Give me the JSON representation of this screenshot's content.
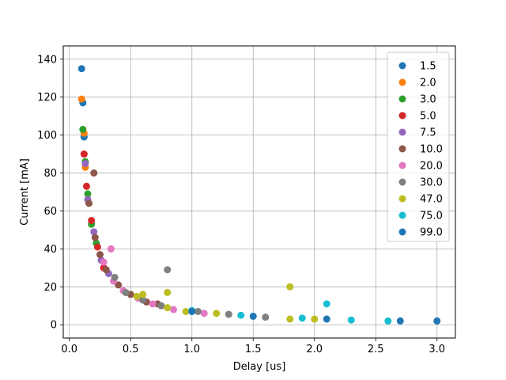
{
  "chart_data": {
    "type": "scatter",
    "title": "",
    "xlabel": "Delay [us]",
    "ylabel": "Current [mA]",
    "xlim": [
      -0.05,
      3.15
    ],
    "ylim": [
      -7,
      147
    ],
    "xticks": [
      0.0,
      0.5,
      1.0,
      1.5,
      2.0,
      2.5,
      3.0
    ],
    "xtick_labels": [
      "0.0",
      "0.5",
      "1.0",
      "1.5",
      "2.0",
      "2.5",
      "3.0"
    ],
    "yticks": [
      0,
      20,
      40,
      60,
      80,
      100,
      120,
      140
    ],
    "ytick_labels": [
      "0",
      "20",
      "40",
      "60",
      "80",
      "100",
      "120",
      "140"
    ],
    "grid": true,
    "legend_position": "top-right",
    "series": [
      {
        "name": "1.5",
        "color": "#1f77b4",
        "points": [
          [
            0.1,
            135
          ],
          [
            0.11,
            117
          ],
          [
            0.12,
            99
          ]
        ]
      },
      {
        "name": "2.0",
        "color": "#ff7f0e",
        "points": [
          [
            0.1,
            119
          ],
          [
            0.12,
            101
          ],
          [
            0.13,
            83
          ]
        ]
      },
      {
        "name": "3.0",
        "color": "#2ca02c",
        "points": [
          [
            0.11,
            103
          ],
          [
            0.13,
            86
          ],
          [
            0.15,
            69
          ],
          [
            0.18,
            53
          ],
          [
            0.22,
            43
          ]
        ]
      },
      {
        "name": "5.0",
        "color": "#d62728",
        "points": [
          [
            0.12,
            90
          ],
          [
            0.14,
            73
          ],
          [
            0.18,
            55
          ],
          [
            0.23,
            41
          ],
          [
            0.28,
            30
          ]
        ]
      },
      {
        "name": "7.5",
        "color": "#9467bd",
        "points": [
          [
            0.13,
            85
          ],
          [
            0.15,
            66
          ],
          [
            0.2,
            49
          ],
          [
            0.26,
            34
          ],
          [
            0.32,
            27
          ]
        ]
      },
      {
        "name": "10.0",
        "color": "#8c564b",
        "points": [
          [
            0.16,
            64
          ],
          [
            0.2,
            80
          ],
          [
            0.21,
            46
          ],
          [
            0.25,
            37
          ],
          [
            0.3,
            29
          ],
          [
            0.4,
            21
          ],
          [
            0.5,
            16
          ],
          [
            0.63,
            12
          ],
          [
            0.72,
            11
          ]
        ]
      },
      {
        "name": "20.0",
        "color": "#e377c2",
        "points": [
          [
            0.28,
            33
          ],
          [
            0.34,
            40
          ],
          [
            0.36,
            23
          ],
          [
            0.44,
            18
          ],
          [
            0.56,
            14
          ],
          [
            0.68,
            11
          ],
          [
            0.85,
            8
          ],
          [
            1.1,
            6
          ]
        ]
      },
      {
        "name": "30.0",
        "color": "#7f7f7f",
        "points": [
          [
            0.37,
            25
          ],
          [
            0.46,
            17
          ],
          [
            0.6,
            13
          ],
          [
            0.8,
            29
          ],
          [
            0.75,
            10
          ],
          [
            1.05,
            7
          ],
          [
            1.3,
            5.5
          ],
          [
            1.6,
            4
          ]
        ]
      },
      {
        "name": "47.0",
        "color": "#bcbd22",
        "points": [
          [
            0.55,
            15
          ],
          [
            0.6,
            16
          ],
          [
            0.8,
            17
          ],
          [
            0.8,
            9
          ],
          [
            0.95,
            7
          ],
          [
            1.2,
            6
          ],
          [
            1.8,
            20
          ],
          [
            1.8,
            3
          ],
          [
            2.0,
            3
          ]
        ]
      },
      {
        "name": "75.0",
        "color": "#17becf",
        "points": [
          [
            1.0,
            7.5
          ],
          [
            1.4,
            5
          ],
          [
            1.9,
            3.5
          ],
          [
            2.1,
            11
          ],
          [
            2.3,
            2.5
          ],
          [
            2.6,
            2
          ]
        ]
      },
      {
        "name": "99.0",
        "color": "#1f77b4",
        "points": [
          [
            1.0,
            7
          ],
          [
            1.5,
            4.5
          ],
          [
            2.1,
            3
          ],
          [
            2.7,
            2
          ],
          [
            3.0,
            2
          ]
        ]
      }
    ]
  }
}
